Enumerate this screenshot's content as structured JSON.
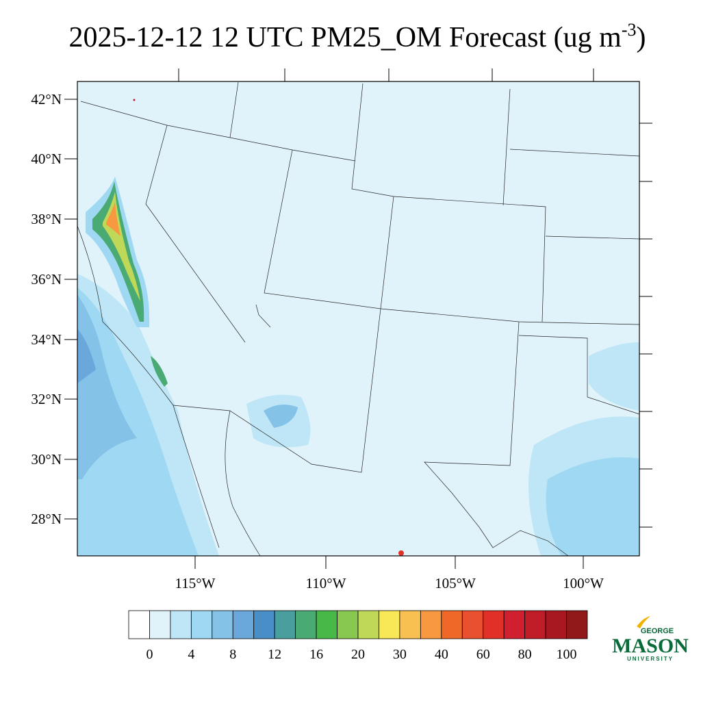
{
  "header": {
    "title": "2025-12-12 12 UTC PM25_OM Forecast (ug m",
    "title_superscript": "-3",
    "title_close": ")"
  },
  "map": {
    "lat_labels": [
      "42°N",
      "40°N",
      "38°N",
      "36°N",
      "34°N",
      "32°N",
      "30°N",
      "28°N"
    ],
    "lon_labels": [
      "115°W",
      "110°W",
      "105°W",
      "100°W"
    ]
  },
  "colorbar": {
    "colors": [
      "#ffffff",
      "#e0f3fb",
      "#bfe6f6",
      "#9fd8f2",
      "#84c2e8",
      "#6aa8dc",
      "#4a8ec8",
      "#4a9e9e",
      "#4aaa74",
      "#48b848",
      "#88c850",
      "#c0d858",
      "#f8e858",
      "#f8c050",
      "#f89840",
      "#f06828",
      "#e85030",
      "#e03028",
      "#d02030",
      "#c01c28",
      "#a81820",
      "#901818"
    ],
    "labels": [
      "0",
      "4",
      "8",
      "12",
      "16",
      "20",
      "30",
      "40",
      "60",
      "80",
      "100"
    ]
  },
  "logo": {
    "top": "GEORGE",
    "main": "MASON",
    "bottom": "UNIVERSITY"
  }
}
